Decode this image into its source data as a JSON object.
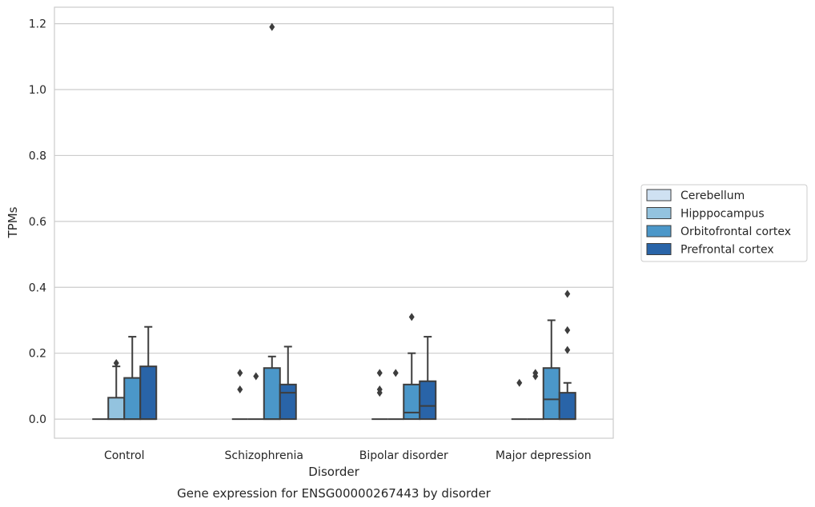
{
  "chart_data": {
    "type": "box",
    "title": "",
    "caption": "Gene expression for ENSG00000267443 by disorder",
    "xlabel": "Disorder",
    "ylabel": "TPMs",
    "ylim": [
      -0.058,
      1.25
    ],
    "yticks": [
      "0.0",
      "0.2",
      "0.4",
      "0.6",
      "0.8",
      "1.0",
      "1.2"
    ],
    "ytick_values": [
      0.0,
      0.2,
      0.4,
      0.6,
      0.8,
      1.0,
      1.2
    ],
    "grid": true,
    "legend_position": "right",
    "categories": [
      "Control",
      "Schizophrenia",
      "Bipolar disorder",
      "Major depression"
    ],
    "series": [
      {
        "name": "Cerebellum",
        "color": "#cfe1f2",
        "boxes": [
          {
            "q1": 0,
            "median": 0,
            "q3": 0,
            "whisker_low": 0,
            "whisker_high": 0,
            "outliers": []
          },
          {
            "q1": 0,
            "median": 0,
            "q3": 0,
            "whisker_low": 0,
            "whisker_high": 0,
            "outliers": [
              0.09,
              0.14
            ]
          },
          {
            "q1": 0,
            "median": 0,
            "q3": 0,
            "whisker_low": 0,
            "whisker_high": 0,
            "outliers": [
              0.08,
              0.09,
              0.14
            ]
          },
          {
            "q1": 0,
            "median": 0,
            "q3": 0,
            "whisker_low": 0,
            "whisker_high": 0,
            "outliers": [
              0.11
            ]
          }
        ]
      },
      {
        "name": "Hipppocampus",
        "color": "#93c3df",
        "boxes": [
          {
            "q1": 0,
            "median": 0,
            "q3": 0.065,
            "whisker_low": 0,
            "whisker_high": 0.16,
            "outliers": [
              0.17
            ]
          },
          {
            "q1": 0,
            "median": 0,
            "q3": 0,
            "whisker_low": 0,
            "whisker_high": 0,
            "outliers": [
              0.13
            ]
          },
          {
            "q1": 0,
            "median": 0,
            "q3": 0,
            "whisker_low": 0,
            "whisker_high": 0,
            "outliers": [
              0.14
            ]
          },
          {
            "q1": 0,
            "median": 0,
            "q3": 0,
            "whisker_low": 0,
            "whisker_high": 0,
            "outliers": [
              0.13,
              0.14
            ]
          }
        ]
      },
      {
        "name": "Orbitofrontal cortex",
        "color": "#4b97c9",
        "boxes": [
          {
            "q1": 0,
            "median": 0,
            "q3": 0.125,
            "whisker_low": 0,
            "whisker_high": 0.25,
            "outliers": []
          },
          {
            "q1": 0,
            "median": 0,
            "q3": 0.155,
            "whisker_low": 0,
            "whisker_high": 0.19,
            "outliers": [
              1.19
            ]
          },
          {
            "q1": 0,
            "median": 0.02,
            "q3": 0.105,
            "whisker_low": 0,
            "whisker_high": 0.2,
            "outliers": [
              0.31
            ]
          },
          {
            "q1": 0,
            "median": 0.06,
            "q3": 0.155,
            "whisker_low": 0,
            "whisker_high": 0.3,
            "outliers": []
          }
        ]
      },
      {
        "name": "Prefrontal cortex",
        "color": "#2964a8",
        "boxes": [
          {
            "q1": 0,
            "median": 0,
            "q3": 0.16,
            "whisker_low": 0,
            "whisker_high": 0.28,
            "outliers": []
          },
          {
            "q1": 0,
            "median": 0.08,
            "q3": 0.105,
            "whisker_low": 0,
            "whisker_high": 0.22,
            "outliers": []
          },
          {
            "q1": 0,
            "median": 0.04,
            "q3": 0.115,
            "whisker_low": 0,
            "whisker_high": 0.25,
            "outliers": []
          },
          {
            "q1": 0,
            "median": 0,
            "q3": 0.08,
            "whisker_low": 0,
            "whisker_high": 0.11,
            "outliers": [
              0.21,
              0.27,
              0.38
            ]
          }
        ]
      }
    ]
  }
}
